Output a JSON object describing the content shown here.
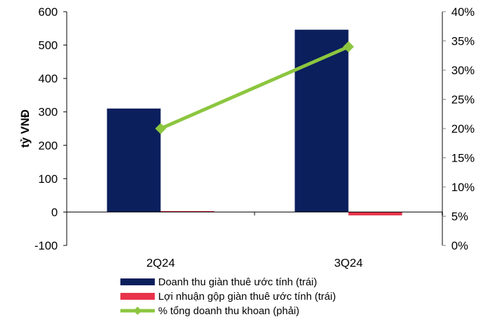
{
  "chart_data": {
    "type": "bar",
    "title": "",
    "xlabel": "",
    "ylabel": "tỷ VNĐ",
    "categories": [
      "2Q24",
      "3Q24"
    ],
    "ylim": [
      -100,
      600
    ],
    "y_ticks": [
      "-100",
      "0",
      "100",
      "200",
      "300",
      "400",
      "500",
      "600"
    ],
    "y2lim": [
      0,
      40
    ],
    "y2_ticks": [
      "0%",
      "5%",
      "10%",
      "15%",
      "20%",
      "25%",
      "30%",
      "35%",
      "40%"
    ],
    "grid": false,
    "legend_position": "bottom",
    "series": [
      {
        "name": "Doanh thu giàn thuê ước tính (trái)",
        "type": "bar",
        "axis": "left",
        "color": "#0a1f5c",
        "values": [
          310,
          546
        ]
      },
      {
        "name": "Lợi nhuận gộp giàn thuê ước tính (trái)",
        "type": "bar",
        "axis": "left",
        "color": "#e8334a",
        "values": [
          3,
          -10
        ]
      },
      {
        "name": "% tổng doanh thu khoan (phải)",
        "type": "line",
        "axis": "right",
        "color": "#8cc63f",
        "marker": "diamond",
        "values": [
          20,
          34
        ]
      }
    ]
  }
}
